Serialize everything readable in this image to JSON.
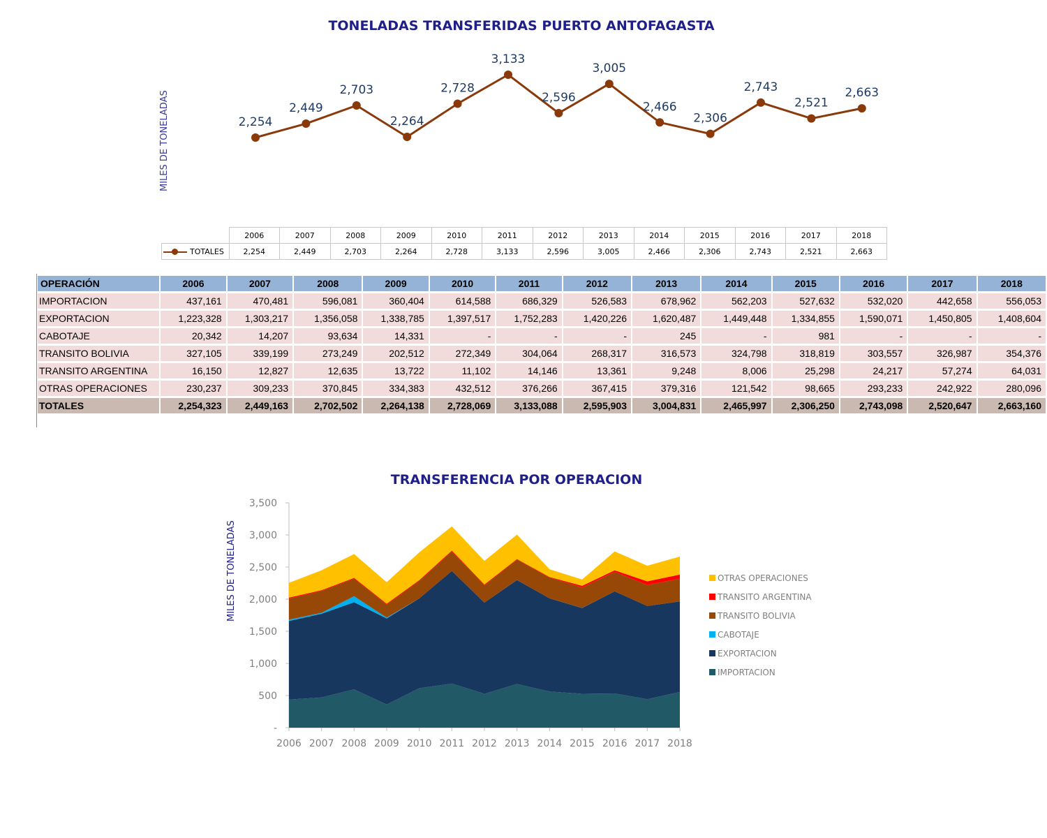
{
  "title_line": "TONELADAS TRANSFERIDAS PUERTO ANTOFAGASTA",
  "ylabel_line": "MILES DE TONELADAS",
  "title_area": "TRANSFERENCIA POR OPERACION",
  "ylabel_area": "MILES DE TONELADAS",
  "colors": {
    "line": "#8a3a0a",
    "label": "#1f3b64",
    "header": "#95b3d7",
    "cell": "#f2dcdb",
    "total": "#c9b9b0"
  },
  "chart_data": [
    {
      "type": "line",
      "title": "TONELADAS TRANSFERIDAS PUERTO ANTOFAGASTA",
      "ylabel": "MILES DE TONELADAS",
      "categories": [
        "2006",
        "2007",
        "2008",
        "2009",
        "2010",
        "2011",
        "2012",
        "2013",
        "2014",
        "2015",
        "2016",
        "2017",
        "2018"
      ],
      "series": [
        {
          "name": "TOTALES",
          "values": [
            2254,
            2449,
            2703,
            2264,
            2728,
            3133,
            2596,
            3005,
            2466,
            2306,
            2743,
            2521,
            2663
          ]
        }
      ],
      "data_labels": [
        "2,254",
        "2,449",
        "2,703",
        "2,264",
        "2,728",
        "3,133",
        "2,596",
        "3,005",
        "2,466",
        "2,306",
        "2,743",
        "2,521",
        "2,663"
      ],
      "legend": "data table below"
    },
    {
      "type": "table",
      "columns": [
        "OPERACIÓN",
        "2006",
        "2007",
        "2008",
        "2009",
        "2010",
        "2011",
        "2012",
        "2013",
        "2014",
        "2015",
        "2016",
        "2017",
        "2018"
      ],
      "rows": [
        [
          "IMPORTACION",
          "437,161",
          "470,481",
          "596,081",
          "360,404",
          "614,588",
          "686,329",
          "526,583",
          "678,962",
          "562,203",
          "527,632",
          "532,020",
          "442,658",
          "556,053"
        ],
        [
          "EXPORTACION",
          "1,223,328",
          "1,303,217",
          "1,356,058",
          "1,338,785",
          "1,397,517",
          "1,752,283",
          "1,420,226",
          "1,620,487",
          "1,449,448",
          "1,334,855",
          "1,590,071",
          "1,450,805",
          "1,408,604"
        ],
        [
          "CABOTAJE",
          "20,342",
          "14,207",
          "93,634",
          "14,331",
          "-",
          "-",
          "-",
          "245",
          "-",
          "981",
          "-",
          "-",
          "-"
        ],
        [
          "TRANSITO BOLIVIA",
          "327,105",
          "339,199",
          "273,249",
          "202,512",
          "272,349",
          "304,064",
          "268,317",
          "316,573",
          "324,798",
          "318,819",
          "303,557",
          "326,987",
          "354,376"
        ],
        [
          "TRANSITO ARGENTINA",
          "16,150",
          "12,827",
          "12,635",
          "13,722",
          "11,102",
          "14,146",
          "13,361",
          "9,248",
          "8,006",
          "25,298",
          "24,217",
          "57,274",
          "64,031"
        ],
        [
          "OTRAS OPERACIONES",
          "230,237",
          "309,233",
          "370,845",
          "334,383",
          "432,512",
          "376,266",
          "367,415",
          "379,316",
          "121,542",
          "98,665",
          "293,233",
          "242,922",
          "280,096"
        ]
      ],
      "totals": [
        "TOTALES",
        "2,254,323",
        "2,449,163",
        "2,702,502",
        "2,264,138",
        "2,728,069",
        "3,133,088",
        "2,595,903",
        "3,004,831",
        "2,465,997",
        "2,306,250",
        "2,743,098",
        "2,520,647",
        "2,663,160"
      ]
    },
    {
      "type": "area",
      "stacked": true,
      "title": "TRANSFERENCIA POR OPERACION",
      "ylabel": "MILES DE TONELADAS",
      "x": [
        "2006",
        "2007",
        "2008",
        "2009",
        "2010",
        "2011",
        "2012",
        "2013",
        "2014",
        "2015",
        "2016",
        "2017",
        "2018"
      ],
      "ylim": [
        0,
        3500
      ],
      "yticks": [
        0,
        500,
        1000,
        1500,
        2000,
        2500,
        3000,
        3500
      ],
      "ytick_labels": [
        "-",
        "500",
        "1,000",
        "1,500",
        "2,000",
        "2,500",
        "3,000",
        "3,500"
      ],
      "legend": "right",
      "series": [
        {
          "name": "IMPORTACION",
          "color": "#215967",
          "values": [
            437.161,
            470.481,
            596.081,
            360.404,
            614.588,
            686.329,
            526.583,
            678.962,
            562.203,
            527.632,
            532.02,
            442.658,
            556.053
          ]
        },
        {
          "name": "EXPORTACION",
          "color": "#17375e",
          "values": [
            1223.328,
            1303.217,
            1356.058,
            1338.785,
            1397.517,
            1752.283,
            1420.226,
            1620.487,
            1449.448,
            1334.855,
            1590.071,
            1450.805,
            1408.604
          ]
        },
        {
          "name": "CABOTAJE",
          "color": "#00b0f0",
          "values": [
            20.342,
            14.207,
            93.634,
            14.331,
            0,
            0,
            0,
            0.245,
            0,
            0.981,
            0,
            0,
            0
          ]
        },
        {
          "name": "TRANSITO BOLIVIA",
          "color": "#974706",
          "values": [
            327.105,
            339.199,
            273.249,
            202.512,
            272.349,
            304.064,
            268.317,
            316.573,
            324.798,
            318.819,
            303.557,
            326.987,
            354.376
          ]
        },
        {
          "name": "TRANSITO ARGENTINA",
          "color": "#ff0000",
          "values": [
            16.15,
            12.827,
            12.635,
            13.722,
            11.102,
            14.146,
            13.361,
            9.248,
            8.006,
            25.298,
            24.217,
            57.274,
            64.031
          ]
        },
        {
          "name": "OTRAS OPERACIONES",
          "color": "#ffc000",
          "values": [
            230.237,
            309.233,
            370.845,
            334.383,
            432.512,
            376.266,
            367.415,
            379.316,
            121.542,
            98.665,
            293.233,
            242.922,
            280.096
          ]
        }
      ],
      "legend_order": [
        "OTRAS OPERACIONES",
        "TRANSITO ARGENTINA",
        "TRANSITO BOLIVIA",
        "CABOTAJE",
        "EXPORTACION",
        "IMPORTACION"
      ]
    }
  ]
}
